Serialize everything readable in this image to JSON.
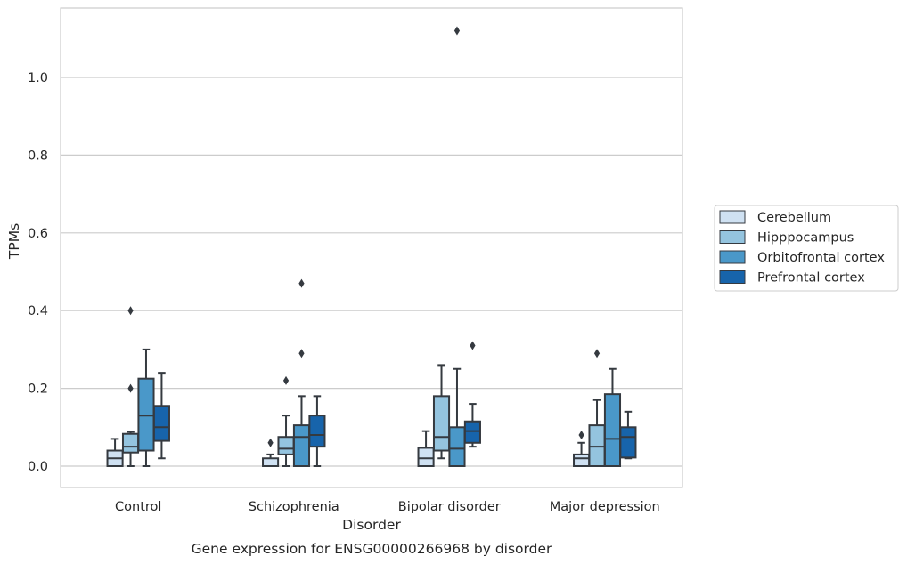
{
  "chart_data": {
    "type": "box",
    "caption": "Gene expression for ENSG00000266968 by disorder",
    "xlabel": "Disorder",
    "ylabel": "TPMs",
    "ylim": [
      -0.055,
      1.18
    ],
    "yticks": [
      0.0,
      0.2,
      0.4,
      0.6,
      0.8,
      1.0
    ],
    "ytick_labels": [
      "0.0",
      "0.2",
      "0.4",
      "0.6",
      "0.8",
      "1.0"
    ],
    "grid": true,
    "legend_placement": "center-right outside",
    "categories": [
      "Control",
      "Schizophrenia",
      "Bipolar disorder",
      "Major depression"
    ],
    "series": [
      {
        "name": "Cerebellum",
        "color": "#cfe1f2",
        "boxes": [
          {
            "whislo": 0.0,
            "q1": 0.0,
            "med": 0.02,
            "q3": 0.04,
            "whishi": 0.07,
            "fliers": []
          },
          {
            "whislo": 0.0,
            "q1": 0.0,
            "med": 0.0,
            "q3": 0.02,
            "whishi": 0.03,
            "fliers": [
              0.06
            ]
          },
          {
            "whislo": 0.0,
            "q1": 0.0,
            "med": 0.02,
            "q3": 0.047,
            "whishi": 0.09,
            "fliers": []
          },
          {
            "whislo": 0.0,
            "q1": 0.0,
            "med": 0.02,
            "q3": 0.03,
            "whishi": 0.06,
            "fliers": [
              0.08
            ]
          }
        ]
      },
      {
        "name": "Hipppocampus",
        "color": "#94c4df",
        "boxes": [
          {
            "whislo": 0.0,
            "q1": 0.035,
            "med": 0.05,
            "q3": 0.083,
            "whishi": 0.088,
            "fliers": [
              0.2,
              0.4
            ]
          },
          {
            "whislo": 0.0,
            "q1": 0.03,
            "med": 0.045,
            "q3": 0.075,
            "whishi": 0.13,
            "fliers": [
              0.22
            ]
          },
          {
            "whislo": 0.02,
            "q1": 0.04,
            "med": 0.075,
            "q3": 0.18,
            "whishi": 0.26,
            "fliers": []
          },
          {
            "whislo": 0.0,
            "q1": 0.0,
            "med": 0.05,
            "q3": 0.105,
            "whishi": 0.17,
            "fliers": [
              0.29
            ]
          }
        ]
      },
      {
        "name": "Orbitofrontal cortex",
        "color": "#4a98c9",
        "boxes": [
          {
            "whislo": 0.0,
            "q1": 0.04,
            "med": 0.13,
            "q3": 0.225,
            "whishi": 0.3,
            "fliers": []
          },
          {
            "whislo": 0.0,
            "q1": 0.0,
            "med": 0.075,
            "q3": 0.105,
            "whishi": 0.18,
            "fliers": [
              0.29,
              0.47
            ]
          },
          {
            "whislo": 0.0,
            "q1": 0.0,
            "med": 0.045,
            "q3": 0.1,
            "whishi": 0.25,
            "fliers": [
              1.12
            ]
          },
          {
            "whislo": 0.0,
            "q1": 0.0,
            "med": 0.07,
            "q3": 0.185,
            "whishi": 0.25,
            "fliers": []
          }
        ]
      },
      {
        "name": "Prefrontal cortex",
        "color": "#1764ab",
        "boxes": [
          {
            "whislo": 0.02,
            "q1": 0.065,
            "med": 0.1,
            "q3": 0.155,
            "whishi": 0.24,
            "fliers": []
          },
          {
            "whislo": 0.0,
            "q1": 0.05,
            "med": 0.08,
            "q3": 0.13,
            "whishi": 0.18,
            "fliers": []
          },
          {
            "whislo": 0.05,
            "q1": 0.06,
            "med": 0.09,
            "q3": 0.115,
            "whishi": 0.16,
            "fliers": [
              0.31
            ]
          },
          {
            "whislo": 0.02,
            "q1": 0.022,
            "med": 0.075,
            "q3": 0.1,
            "whishi": 0.14,
            "fliers": []
          }
        ]
      }
    ]
  }
}
